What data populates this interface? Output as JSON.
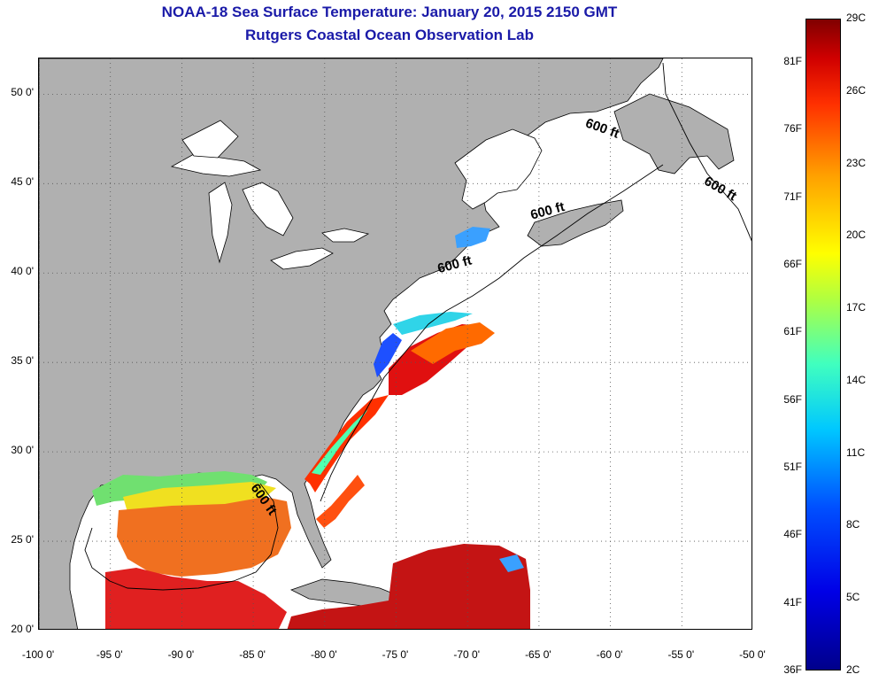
{
  "title_line1": "NOAA-18 Sea Surface Temperature:  January 20, 2015 2150 GMT",
  "title_line2": "Rutgers Coastal Ocean Observation Lab",
  "colors": {
    "land": "#b0b0b0",
    "water": "#ffffff",
    "title": "#1a1aa8",
    "grid": "#555555"
  },
  "map": {
    "lon_range": [
      -100,
      -50
    ],
    "lat_range": [
      20,
      52
    ],
    "lat_labels": [
      {
        "value": 50,
        "text": "50 0'"
      },
      {
        "value": 45,
        "text": "45 0'"
      },
      {
        "value": 40,
        "text": "40 0'"
      },
      {
        "value": 35,
        "text": "35 0'"
      },
      {
        "value": 30,
        "text": "30 0'"
      },
      {
        "value": 25,
        "text": "25 0'"
      },
      {
        "value": 20,
        "text": "20 0'"
      }
    ],
    "lon_labels": [
      {
        "value": -100,
        "text": "-100 0'"
      },
      {
        "value": -95,
        "text": "-95 0'"
      },
      {
        "value": -90,
        "text": "-90 0'"
      },
      {
        "value": -85,
        "text": "-85 0'"
      },
      {
        "value": -80,
        "text": "-80 0'"
      },
      {
        "value": -75,
        "text": "-75 0'"
      },
      {
        "value": -70,
        "text": "-70 0'"
      },
      {
        "value": -65,
        "text": "-65 0'"
      },
      {
        "value": -60,
        "text": "-60 0'"
      },
      {
        "value": -55,
        "text": "-55 0'"
      },
      {
        "value": -50,
        "text": "-50 0'"
      }
    ],
    "isobath_labels": [
      {
        "text": "600 ft",
        "lon": -61.8,
        "lat": 48.2,
        "rotate": 20
      },
      {
        "text": "600 ft",
        "lon": -53.5,
        "lat": 45.0,
        "rotate": 30
      },
      {
        "text": "600 ft",
        "lon": -65.5,
        "lat": 43.0,
        "rotate": -15
      },
      {
        "text": "600 ft",
        "lon": -72.0,
        "lat": 40.0,
        "rotate": -15
      },
      {
        "text": "600 ft",
        "lon": -85.2,
        "lat": 28.0,
        "rotate": 55
      }
    ]
  },
  "colorbar": {
    "fahrenheit": [
      {
        "value": 81,
        "text": "81F"
      },
      {
        "value": 76,
        "text": "76F"
      },
      {
        "value": 71,
        "text": "71F"
      },
      {
        "value": 66,
        "text": "66F"
      },
      {
        "value": 61,
        "text": "61F"
      },
      {
        "value": 56,
        "text": "56F"
      },
      {
        "value": 51,
        "text": "51F"
      },
      {
        "value": 46,
        "text": "46F"
      },
      {
        "value": 41,
        "text": "41F"
      },
      {
        "value": 36,
        "text": "36F"
      }
    ],
    "celsius": [
      {
        "value": 29,
        "text": "29C"
      },
      {
        "value": 26,
        "text": "26C"
      },
      {
        "value": 23,
        "text": "23C"
      },
      {
        "value": 20,
        "text": "20C"
      },
      {
        "value": 17,
        "text": "17C"
      },
      {
        "value": 14,
        "text": "14C"
      },
      {
        "value": 11,
        "text": "11C"
      },
      {
        "value": 8,
        "text": "8C"
      },
      {
        "value": 5,
        "text": "5C"
      },
      {
        "value": 2,
        "text": "2C"
      }
    ]
  }
}
